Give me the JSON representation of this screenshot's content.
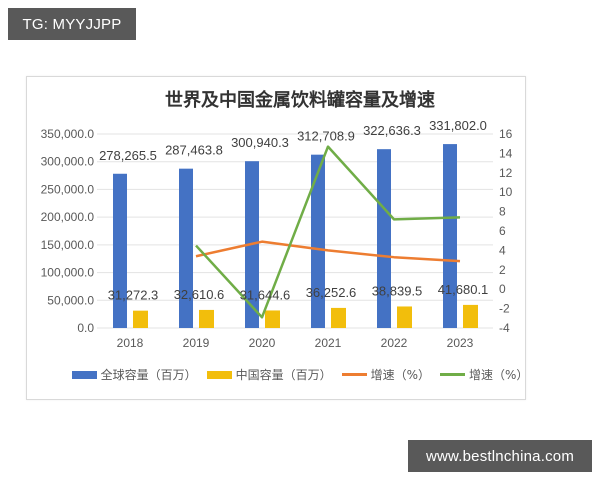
{
  "watermarks": {
    "top_left": "TG: MYYJJPP",
    "bottom_right": "www.bestlnchina.com"
  },
  "chart_data": {
    "type": "bar",
    "title": "世界及中国金属饮料罐容量及增速",
    "categories": [
      "2018",
      "2019",
      "2020",
      "2021",
      "2022",
      "2023"
    ],
    "series": [
      {
        "name": "全球容量（百万）",
        "type": "bar",
        "axis": "left",
        "color": "#4472C4",
        "values": [
          278265.5,
          287463.8,
          300940.3,
          312708.9,
          322636.3,
          331802.0
        ],
        "labels": [
          "278,265.5",
          "287,463.8",
          "300,940.3",
          "312,708.9",
          "322,636.3",
          "331,802.0"
        ]
      },
      {
        "name": "中国容量（百万）",
        "type": "bar",
        "axis": "left",
        "color": "#F2BE0C",
        "values": [
          31272.3,
          32610.6,
          31644.6,
          36252.6,
          38839.5,
          41680.1
        ],
        "labels": [
          "31,272.3",
          "32,610.6",
          "31,644.6",
          "36,252.6",
          "38,839.5",
          "41,680.1"
        ]
      },
      {
        "name": "增速（%）",
        "type": "line",
        "axis": "right",
        "color": "#ED7D31",
        "values": [
          null,
          3.4,
          4.9,
          4.0,
          3.3,
          2.9
        ]
      },
      {
        "name": "增速（%）",
        "type": "line",
        "axis": "right",
        "color": "#70AD47",
        "values": [
          null,
          4.5,
          -2.9,
          14.7,
          7.2,
          7.4
        ]
      }
    ],
    "left_axis": {
      "ylim": [
        0,
        350000
      ],
      "ticks": [
        "0.0",
        "50,000.0",
        "100,000.0",
        "150,000.0",
        "200,000.0",
        "250,000.0",
        "300,000.0",
        "350,000.0"
      ]
    },
    "right_axis": {
      "ylim": [
        -4,
        16
      ],
      "ticks": [
        "-4",
        "-2",
        "0",
        "2",
        "4",
        "6",
        "8",
        "10",
        "12",
        "14",
        "16"
      ]
    },
    "xlabel": "",
    "ylabel": "",
    "grid": true,
    "legend_position": "bottom"
  }
}
